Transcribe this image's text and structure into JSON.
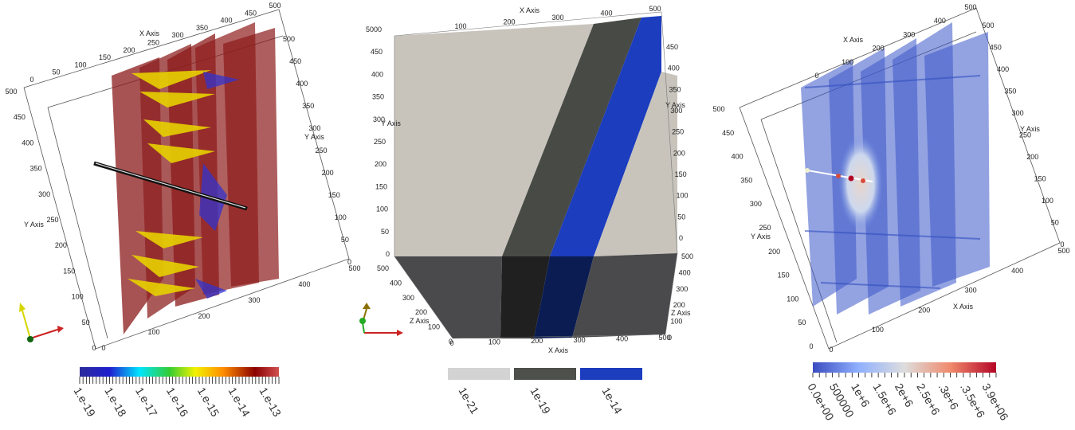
{
  "panels": [
    {
      "id": "left",
      "axis_labels": {
        "x": "X Axis",
        "y1": "Y Axis",
        "y2": "Y Axis"
      },
      "top_ticks": [
        "0",
        "50",
        "100",
        "150",
        "200",
        "250",
        "300",
        "350",
        "400",
        "450",
        "500"
      ],
      "left_ticks": [
        "500",
        "450",
        "400",
        "350",
        "300",
        "250",
        "200",
        "150",
        "100",
        "50",
        "0"
      ],
      "right_ticks": [
        "500",
        "450",
        "400",
        "350",
        "300",
        "250",
        "200",
        "150",
        "100",
        "50",
        "0"
      ],
      "bottom_ticks": [
        "0",
        "100",
        "200",
        "300",
        "400",
        "500"
      ],
      "colorbar": {
        "ticks": [
          "1.e-19",
          "1.e-18",
          "1.e-17",
          "1.e-16",
          "1.e-15",
          "1.e-14",
          "1.e-13"
        ],
        "colors": [
          "#2b2b9b",
          "#1f1fcf",
          "#00e5ff",
          "#33cc33",
          "#f2f200",
          "#ff8c00",
          "#8b0000",
          "#d25050"
        ]
      }
    },
    {
      "id": "middle",
      "axis_labels": {
        "x_top": "X Axis",
        "y_left": "Y Axis",
        "y_right": "Y Axis",
        "z_left": "Z Axis",
        "z_right": "Z Axis",
        "x_bottom": "X Axis"
      },
      "top_ticks": [
        "100",
        "200",
        "300",
        "400",
        "500"
      ],
      "left_ticks": [
        "5000",
        "450",
        "400",
        "350",
        "300",
        "250",
        "200",
        "150",
        "100",
        "50",
        "0"
      ],
      "right_ticks": [
        "450",
        "400",
        "350",
        "300",
        "250",
        "200",
        "150",
        "100",
        "50",
        "0"
      ],
      "z_ticks": [
        "500",
        "400",
        "300",
        "200",
        "100",
        "0"
      ],
      "z_right_ticks": [
        "500",
        "400",
        "300",
        "200",
        "100",
        "0"
      ],
      "bottom_ticks": [
        "0",
        "100",
        "200",
        "300",
        "400",
        "500"
      ],
      "colorbar": {
        "ticks": [
          "1e-21",
          "1e-19",
          "1e-14"
        ],
        "colors": [
          "#d3d3d3",
          "#4d504b",
          "#1b3dbe"
        ]
      }
    },
    {
      "id": "right",
      "axis_labels": {
        "x_top": "X Axis",
        "y_right": "Y Axis",
        "y_left": "Y Axis",
        "x_bottom": "X Axis"
      },
      "top_ticks": [
        "0",
        "100",
        "200",
        "300",
        "400",
        "500"
      ],
      "left_ticks": [
        "500",
        "450",
        "400",
        "350",
        "300",
        "250",
        "200",
        "150",
        "100",
        "50",
        "0"
      ],
      "right_ticks": [
        "500",
        "450",
        "400",
        "350",
        "300",
        "250",
        "200",
        "150",
        "100",
        "50",
        "0"
      ],
      "bottom_ticks": [
        "0",
        "100",
        "200",
        "300",
        "400",
        "500"
      ],
      "colorbar": {
        "ticks": [
          "0.0e+00",
          "500000",
          "1e+6",
          "1.5e+6",
          "2e+6",
          "2.5e+6",
          ".3e+6",
          ".3.5e+6",
          "3.9e+06"
        ],
        "colors": [
          "#3b4cc0",
          "#6f92f3",
          "#aac7fd",
          "#dddddd",
          "#f7b89c",
          "#e7745b",
          "#b40426"
        ]
      }
    }
  ]
}
